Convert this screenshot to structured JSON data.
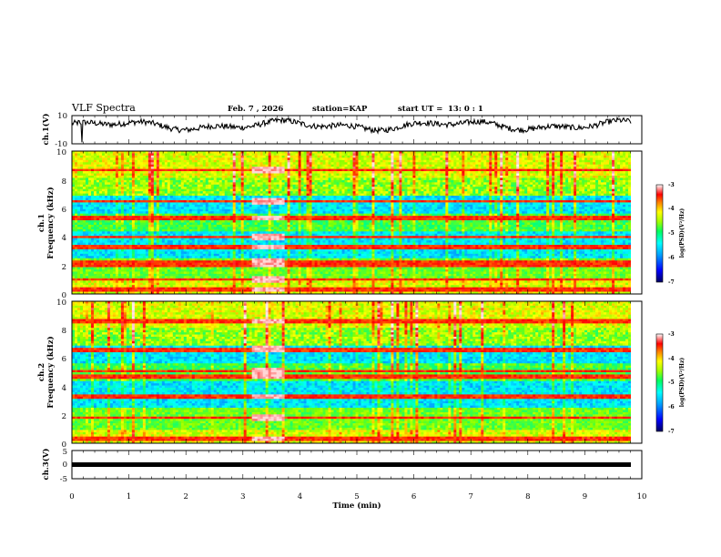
{
  "header": {
    "title": "VLF Spectra",
    "date": "Feb. 7 , 2026",
    "station": "station=KAP",
    "start": "start UT =",
    "start_time": "13: 0 : 1"
  },
  "chart_data": [
    {
      "type": "line",
      "name": "ch1-waveform",
      "ylabel": "ch.1(V)",
      "ylim": [
        -10,
        10
      ],
      "ytick_labels": [
        "10",
        "-10"
      ],
      "xlim": [
        0,
        10
      ],
      "baseline_level": 3,
      "description_series": "amplitude envelope fluctuating roughly between -5 and 8 V over 10 min"
    },
    {
      "type": "heatmap",
      "name": "ch1-spectrogram",
      "ylabel_top": "ch.1",
      "ylabel": "Frequency (kHz)",
      "ylim": [
        0,
        10
      ],
      "ytick_labels": [
        "10",
        "8",
        "6",
        "4",
        "2",
        "0"
      ],
      "xlim": [
        0,
        10
      ],
      "colorbar": {
        "label": "log(PSD)(V²/Hz)",
        "range": [
          -7,
          -3
        ],
        "tick_labels": [
          "-3",
          "-4",
          "-5",
          "-6",
          "-7"
        ]
      },
      "bands_khz": [
        0.3,
        1.0,
        2.0,
        2.3,
        3.3,
        4.0,
        5.3,
        6.5,
        8.7
      ],
      "burst_interval_min": [
        3.15,
        3.75
      ]
    },
    {
      "type": "heatmap",
      "name": "ch2-spectrogram",
      "ylabel_top": "ch.2",
      "ylabel": "Frequency (kHz)",
      "ylim": [
        0,
        10
      ],
      "ytick_labels": [
        "10",
        "8",
        "6",
        "4",
        "2",
        "0"
      ],
      "xlim": [
        0,
        10
      ],
      "colorbar": {
        "label": "log(PSD)(V²/Hz)",
        "range": [
          -7,
          -3
        ],
        "tick_labels": [
          "-3",
          "-4",
          "-5",
          "-6",
          "-7"
        ]
      },
      "bands_khz": [
        0.3,
        1.8,
        3.3,
        4.7,
        5.1,
        6.6,
        8.6
      ],
      "burst_interval_min": [
        3.15,
        3.75
      ]
    },
    {
      "type": "line",
      "name": "ch3-waveform",
      "ylabel": "ch.3(V)",
      "ylim": [
        -5,
        5
      ],
      "ytick_labels": [
        "5",
        "0",
        "-5"
      ],
      "xlim": [
        0,
        10
      ],
      "level": 0.4
    }
  ],
  "xaxis": {
    "label": "Time (min)",
    "tick_labels": [
      "0",
      "1",
      "2",
      "3",
      "4",
      "5",
      "6",
      "7",
      "8",
      "9",
      "10"
    ]
  },
  "colors": {
    "frame": "#000000",
    "colormap": [
      "#000080",
      "#0000ff",
      "#00a0ff",
      "#00ffff",
      "#00ff80",
      "#80ff00",
      "#ffff00",
      "#ff8000",
      "#ff0000",
      "#ffd0d0",
      "#ffffff"
    ]
  }
}
